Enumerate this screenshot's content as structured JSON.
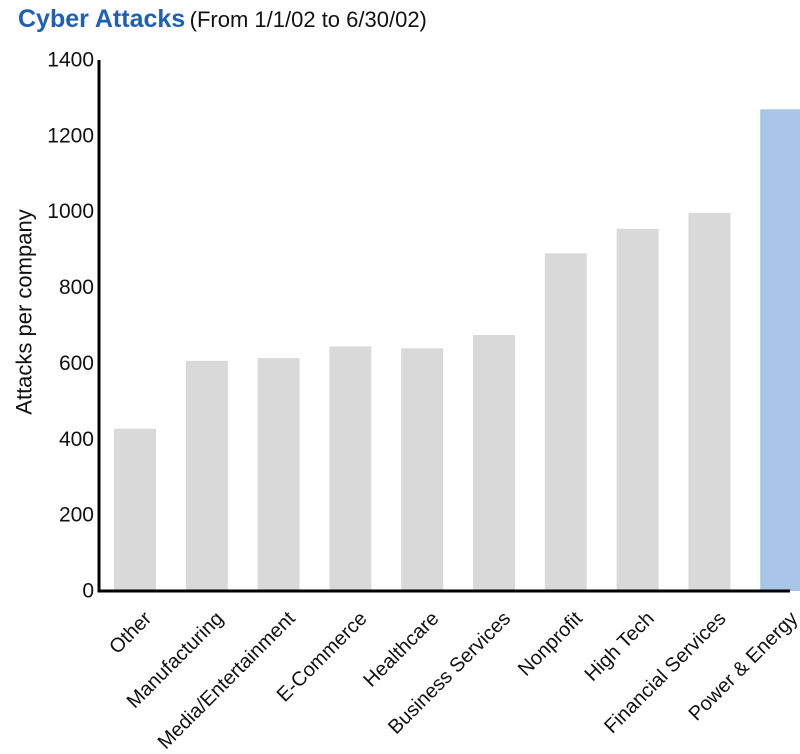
{
  "chart_data": {
    "type": "bar",
    "title": "Cyber Attacks",
    "subtitle": "(From 1/1/02 to 6/30/02)",
    "xlabel": "",
    "ylabel": "Attacks per company",
    "ylim": [
      0,
      1400
    ],
    "yticks": [
      0,
      200,
      400,
      600,
      800,
      1000,
      1200,
      1400
    ],
    "grid": false,
    "categories": [
      "Other",
      "Manufacturing",
      "Media/Entertainment",
      "E-Commerce",
      "Healthcare",
      "Business Services",
      "Nonprofit",
      "High Tech",
      "Financial Services",
      "Power & Energy"
    ],
    "series": [
      {
        "values": [
          428,
          607,
          614,
          645,
          640,
          675,
          890,
          955,
          997,
          1270
        ]
      }
    ],
    "highlight_category": "Power & Energy"
  },
  "colors": {
    "title": "#1f5fb4",
    "bar": "#d9d9d9",
    "highlight_bar": "#a8c4e6",
    "axis": "#000000",
    "text": "#111111"
  }
}
